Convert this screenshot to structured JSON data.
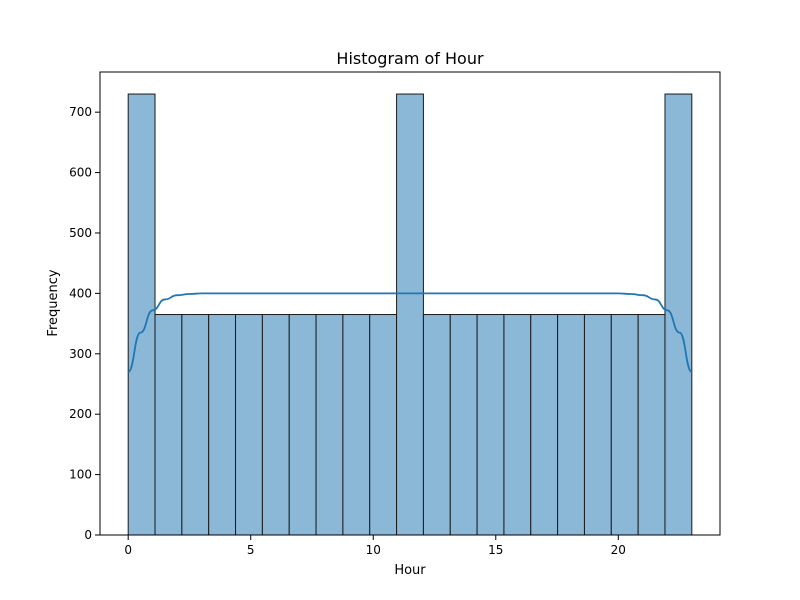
{
  "chart_data": {
    "type": "bar",
    "title": "Histogram of Hour",
    "xlabel": "Hour",
    "ylabel": "Frequency",
    "xlim": [
      -1.15,
      24.15
    ],
    "ylim": [
      0,
      766.5
    ],
    "xticks": [
      0,
      5,
      10,
      15,
      20
    ],
    "yticks": [
      0,
      100,
      200,
      300,
      400,
      500,
      600,
      700
    ],
    "bin_edges": [
      0,
      1.0952,
      2.1905,
      3.2857,
      4.381,
      5.4762,
      6.5714,
      7.6667,
      8.7619,
      9.8571,
      10.9524,
      12.0476,
      13.1429,
      14.2381,
      15.3333,
      16.4286,
      17.5238,
      18.619,
      19.7143,
      20.8095,
      21.9048,
      23.0
    ],
    "values": [
      730,
      365,
      365,
      365,
      365,
      365,
      365,
      365,
      365,
      365,
      730,
      365,
      365,
      365,
      365,
      365,
      365,
      365,
      365,
      365,
      730
    ],
    "kde": {
      "x": [
        0,
        0.5,
        1,
        1.5,
        2,
        2.5,
        3,
        4,
        5,
        10,
        15,
        20,
        20.5,
        21,
        21.5,
        22,
        22.5,
        23
      ],
      "y": [
        270,
        335,
        372,
        390,
        397,
        399,
        400,
        400,
        400,
        400,
        400,
        400,
        399,
        397,
        390,
        372,
        335,
        270
      ]
    },
    "colors": {
      "bar_fill": "#8cb8d8",
      "bar_edge": "#1a1a1a",
      "kde_line": "#1f77b4"
    },
    "grid": false,
    "legend": "none"
  }
}
